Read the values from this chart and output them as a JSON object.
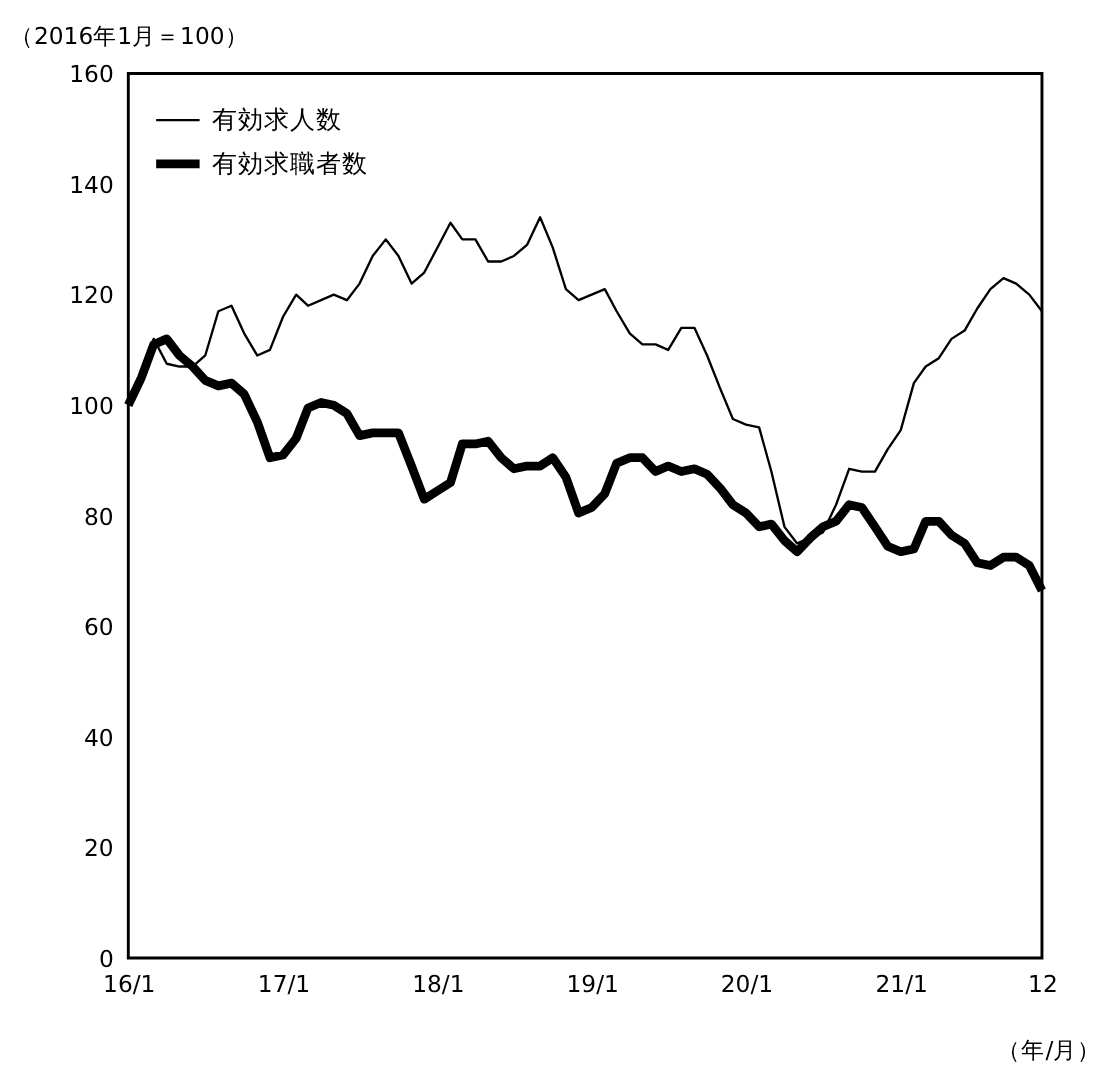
{
  "chart_data": {
    "type": "line",
    "title": "（2016年1月＝100）",
    "xlabel": "（年/月）",
    "x": [
      "2016-01",
      "2016-02",
      "2016-03",
      "2016-04",
      "2016-05",
      "2016-06",
      "2016-07",
      "2016-08",
      "2016-09",
      "2016-10",
      "2016-11",
      "2016-12",
      "2017-01",
      "2017-02",
      "2017-03",
      "2017-04",
      "2017-05",
      "2017-06",
      "2017-07",
      "2017-08",
      "2017-09",
      "2017-10",
      "2017-11",
      "2017-12",
      "2018-01",
      "2018-02",
      "2018-03",
      "2018-04",
      "2018-05",
      "2018-06",
      "2018-07",
      "2018-08",
      "2018-09",
      "2018-10",
      "2018-11",
      "2018-12",
      "2019-01",
      "2019-02",
      "2019-03",
      "2019-04",
      "2019-05",
      "2019-06",
      "2019-07",
      "2019-08",
      "2019-09",
      "2019-10",
      "2019-11",
      "2019-12",
      "2020-01",
      "2020-02",
      "2020-03",
      "2020-04",
      "2020-05",
      "2020-06",
      "2020-07",
      "2020-08",
      "2020-09",
      "2020-10",
      "2020-11",
      "2020-12",
      "2021-01",
      "2021-02",
      "2021-03",
      "2021-04",
      "2021-05",
      "2021-06",
      "2021-07",
      "2021-08",
      "2021-09",
      "2021-10",
      "2021-11",
      "2021-12"
    ],
    "series": [
      {
        "name": "有効求人数",
        "color": "#000000",
        "values": [
          100,
          106,
          112,
          107.5,
          107,
          107,
          109,
          117,
          118,
          113,
          109,
          110,
          116,
          120,
          118,
          119,
          120,
          119,
          122,
          127,
          130,
          127,
          122,
          124,
          128.5,
          133,
          130,
          130,
          126,
          126,
          127,
          129,
          134,
          128.5,
          121,
          119,
          120,
          121,
          117,
          113,
          111,
          111,
          110,
          114,
          114,
          109,
          103,
          97.5,
          96.5,
          96,
          88,
          78,
          75,
          76,
          77,
          82,
          88.5,
          88,
          88,
          92,
          95.5,
          104,
          107,
          108.5,
          112,
          113.5,
          117.5,
          121,
          123,
          122,
          120,
          117
        ]
      },
      {
        "name": "有効求職者数",
        "color": "#000000",
        "values": [
          100,
          105,
          111,
          112,
          109,
          107,
          104.5,
          103.5,
          104,
          102,
          97,
          90.5,
          91,
          94,
          99.5,
          100.5,
          100,
          98.5,
          94.5,
          95,
          95,
          95,
          89,
          83,
          84.5,
          86,
          93,
          93,
          93.5,
          90.5,
          88.5,
          89,
          89,
          90.5,
          87,
          80.5,
          81.5,
          84,
          89.5,
          90.5,
          90.5,
          88,
          89,
          88,
          88.5,
          87.5,
          85,
          82,
          80.5,
          78,
          78.5,
          75.5,
          73.5,
          76,
          78,
          79,
          82,
          81.5,
          78,
          74.5,
          73.5,
          74,
          79,
          79,
          76.5,
          75,
          71.5,
          71,
          72.5,
          72.5,
          71,
          66.5
        ]
      }
    ],
    "xlim": [
      "2016-01",
      "2021-12"
    ],
    "xticks": [
      {
        "value": "2016-01",
        "label": "16/1"
      },
      {
        "value": "2017-01",
        "label": "17/1"
      },
      {
        "value": "2018-01",
        "label": "18/1"
      },
      {
        "value": "2019-01",
        "label": "19/1"
      },
      {
        "value": "2020-01",
        "label": "20/1"
      },
      {
        "value": "2021-01",
        "label": "21/1"
      },
      {
        "value": "2021-12",
        "label": "12"
      }
    ],
    "ylim": [
      0,
      160
    ],
    "yticks": [
      0,
      20,
      40,
      60,
      80,
      100,
      120,
      140,
      160
    ],
    "grid": false,
    "legend": "top left",
    "marker": "none",
    "line_style": "solid"
  }
}
